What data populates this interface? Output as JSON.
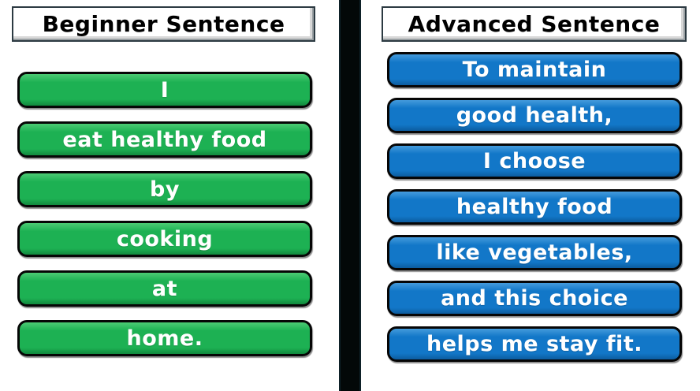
{
  "colors": {
    "green-base": "#1db153",
    "green-light": "#4ccb74",
    "green-dark": "#128a3e",
    "blue-base": "#1277c8",
    "blue-light": "#459bdc",
    "blue-dark": "#0c5c9f",
    "divider": "#030808"
  },
  "left_panel": {
    "title": "Beginner Sentence",
    "items": [
      "I",
      "eat healthy food",
      "by",
      "cooking",
      "at",
      "home."
    ]
  },
  "right_panel": {
    "title": "Advanced Sentence",
    "items": [
      "To maintain",
      "good health,",
      "I choose",
      "healthy food",
      "like vegetables,",
      "and this choice",
      "helps me stay fit."
    ]
  }
}
